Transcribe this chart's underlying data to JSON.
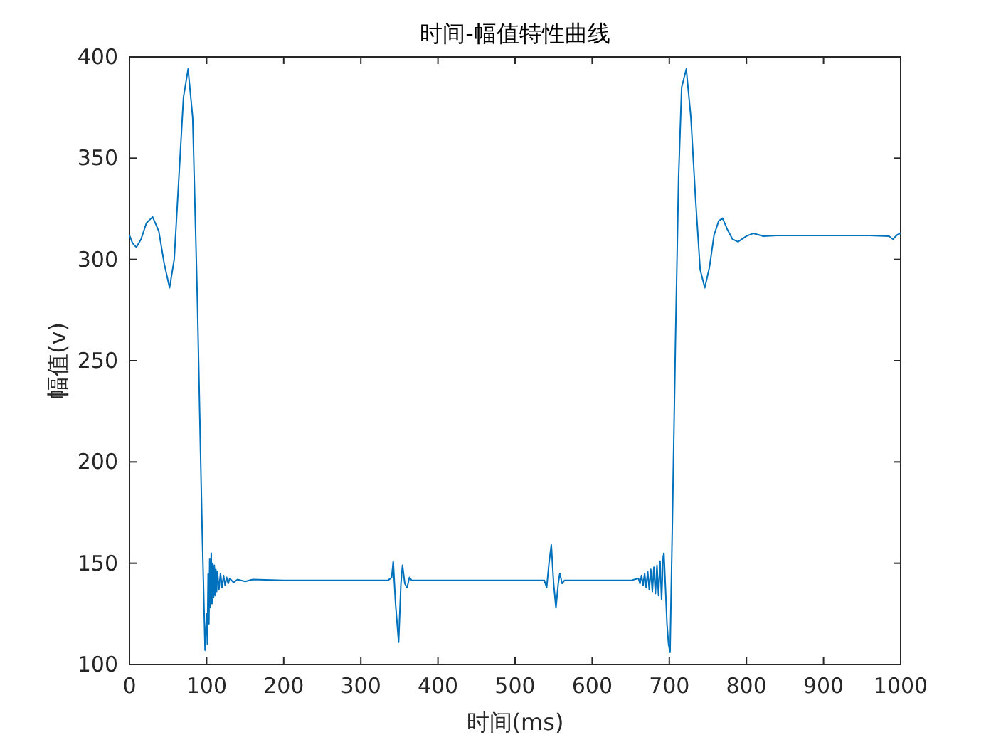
{
  "chart_data": {
    "type": "line",
    "title": "时间-幅值特性曲线",
    "xlabel": "时间(ms)",
    "ylabel": "幅值(v)",
    "xlim": [
      0,
      1000
    ],
    "ylim": [
      100,
      400
    ],
    "xticks": [
      0,
      100,
      200,
      300,
      400,
      500,
      600,
      700,
      800,
      900,
      1000
    ],
    "yticks": [
      100,
      150,
      200,
      250,
      300,
      350,
      400
    ],
    "series": [
      {
        "color": "#0072bd",
        "x": [
          0,
          4,
          9,
          15,
          22,
          30,
          38,
          45,
          52,
          58,
          64,
          70,
          76,
          82,
          88,
          94,
          98,
          100,
          101,
          102,
          103,
          104,
          105,
          106,
          107,
          108,
          109,
          110,
          111,
          112,
          113,
          114,
          116,
          118,
          120,
          122,
          124,
          126,
          128,
          130,
          135,
          140,
          150,
          160,
          200,
          300,
          335,
          340,
          342,
          345,
          349,
          352,
          354,
          357,
          360,
          363,
          366,
          400,
          500,
          538,
          541,
          544,
          547,
          550,
          553,
          556,
          558,
          561,
          564,
          600,
          650,
          660,
          662,
          664,
          666,
          668,
          670,
          672,
          674,
          676,
          678,
          680,
          682,
          684,
          686,
          688,
          690,
          692,
          693,
          695,
          697,
          699,
          701,
          704,
          708,
          712,
          716,
          722,
          728,
          734,
          740,
          746,
          752,
          758,
          764,
          769,
          775,
          782,
          789,
          800,
          809,
          822,
          840,
          900,
          960,
          985,
          990,
          995,
          1000
        ],
        "values": [
          312,
          308,
          306,
          310,
          318,
          321,
          314,
          298,
          286,
          300,
          340,
          380,
          394,
          370,
          280,
          170,
          107,
          125,
          110,
          145,
          120,
          152,
          128,
          155,
          130,
          150,
          133,
          149,
          134,
          147,
          136,
          146,
          137,
          145,
          138,
          144,
          139,
          143,
          140,
          142.5,
          140.5,
          142,
          141,
          142,
          141.5,
          141.5,
          141.5,
          143,
          151,
          130,
          111,
          140,
          149,
          140,
          138,
          143,
          141.5,
          141.5,
          141.5,
          141.5,
          138,
          150,
          159,
          140,
          128,
          140,
          145,
          140,
          141.5,
          141.5,
          141.5,
          142.5,
          140,
          144,
          139,
          145,
          138,
          146,
          137,
          147,
          136,
          148,
          135,
          149,
          134,
          151,
          132,
          153,
          155,
          138,
          120,
          110,
          106,
          170,
          260,
          340,
          385,
          394,
          370,
          330,
          295,
          286,
          296,
          312,
          319,
          320.4,
          315,
          310,
          308.7,
          311.5,
          312.9,
          311.5,
          311.8,
          311.8,
          311.8,
          311.5,
          310,
          312,
          313
        ]
      }
    ]
  }
}
